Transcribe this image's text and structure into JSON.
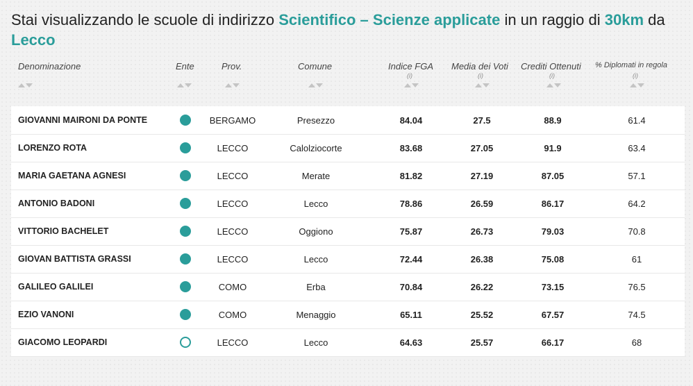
{
  "title": {
    "prefix": "Stai visualizzando le scuole di indirizzo ",
    "indirizzo": "Scientifico – Scienze applicate",
    "mid": " in un raggio di ",
    "raggio": "30km",
    "suffix": " da ",
    "citta": "Lecco"
  },
  "columns": {
    "denominazione": "Denominazione",
    "ente": "Ente",
    "prov": "Prov.",
    "comune": "Comune",
    "indice": "Indice FGA",
    "media": "Media dei Voti",
    "crediti": "Crediti Ottenuti",
    "diplomati": "% Diplomati in regola",
    "info": "(i)"
  },
  "colors": {
    "accent": "#2a9d9a"
  },
  "rows": [
    {
      "name": "GIOVANNI MAIRONI DA PONTE",
      "ente": "filled",
      "prov": "BERGAMO",
      "comune": "Presezzo",
      "indice": "84.04",
      "media": "27.5",
      "crediti": "88.9",
      "diplomati": "61.4"
    },
    {
      "name": "LORENZO ROTA",
      "ente": "filled",
      "prov": "LECCO",
      "comune": "Calolziocorte",
      "indice": "83.68",
      "media": "27.05",
      "crediti": "91.9",
      "diplomati": "63.4"
    },
    {
      "name": "MARIA GAETANA AGNESI",
      "ente": "filled",
      "prov": "LECCO",
      "comune": "Merate",
      "indice": "81.82",
      "media": "27.19",
      "crediti": "87.05",
      "diplomati": "57.1"
    },
    {
      "name": "ANTONIO BADONI",
      "ente": "filled",
      "prov": "LECCO",
      "comune": "Lecco",
      "indice": "78.86",
      "media": "26.59",
      "crediti": "86.17",
      "diplomati": "64.2"
    },
    {
      "name": "VITTORIO BACHELET",
      "ente": "filled",
      "prov": "LECCO",
      "comune": "Oggiono",
      "indice": "75.87",
      "media": "26.73",
      "crediti": "79.03",
      "diplomati": "70.8"
    },
    {
      "name": "GIOVAN BATTISTA GRASSI",
      "ente": "filled",
      "prov": "LECCO",
      "comune": "Lecco",
      "indice": "72.44",
      "media": "26.38",
      "crediti": "75.08",
      "diplomati": "61"
    },
    {
      "name": "GALILEO GALILEI",
      "ente": "filled",
      "prov": "COMO",
      "comune": "Erba",
      "indice": "70.84",
      "media": "26.22",
      "crediti": "73.15",
      "diplomati": "76.5"
    },
    {
      "name": "EZIO VANONI",
      "ente": "filled",
      "prov": "COMO",
      "comune": "Menaggio",
      "indice": "65.11",
      "media": "25.52",
      "crediti": "67.57",
      "diplomati": "74.5"
    },
    {
      "name": "GIACOMO LEOPARDI",
      "ente": "empty",
      "prov": "LECCO",
      "comune": "Lecco",
      "indice": "64.63",
      "media": "25.57",
      "crediti": "66.17",
      "diplomati": "68"
    }
  ]
}
